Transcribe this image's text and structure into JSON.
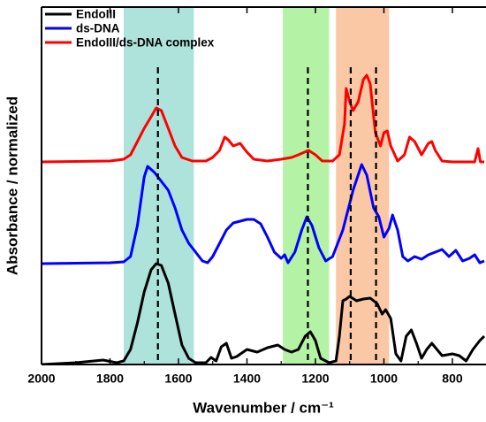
{
  "chart_data": {
    "type": "line",
    "x_label": "Wavenumber / cm⁻¹",
    "y_label": "Absorbance / normalized",
    "xlim": [
      2000,
      707
    ],
    "ylim": [
      0,
      404
    ],
    "xticks": [
      2000,
      1800,
      1600,
      1400,
      1200,
      1000,
      800
    ],
    "legend": "upper left",
    "bands": [
      {
        "from": 1760,
        "to": 1555,
        "color": "#aee3dc"
      },
      {
        "from": 1295,
        "to": 1160,
        "color": "#b4f3a6"
      },
      {
        "from": 1140,
        "to": 985,
        "color": "#fbc8a5"
      }
    ],
    "vlines": [
      1660,
      1222,
      1097,
      1023
    ],
    "series": [
      {
        "name": "EndoIII",
        "color": "#000000",
        "x": [
          2000,
          1900,
          1820,
          1780,
          1760,
          1740,
          1720,
          1700,
          1680,
          1665,
          1650,
          1630,
          1610,
          1590,
          1570,
          1550,
          1520,
          1505,
          1490,
          1475,
          1460,
          1445,
          1430,
          1400,
          1370,
          1340,
          1310,
          1290,
          1270,
          1250,
          1230,
          1215,
          1200,
          1185,
          1160,
          1140,
          1130,
          1120,
          1110,
          1100,
          1080,
          1060,
          1040,
          1020,
          1005,
          995,
          980,
          965,
          950,
          935,
          920,
          905,
          890,
          875,
          860,
          845,
          830,
          800,
          780,
          760,
          740,
          720,
          707
        ],
        "values": [
          0,
          2,
          5,
          2,
          4,
          17,
          47,
          82,
          107,
          114,
          112,
          92,
          57,
          22,
          7,
          2,
          2,
          8,
          4,
          20,
          24,
          7,
          9,
          17,
          14,
          19,
          22,
          17,
          14,
          17,
          32,
          37,
          27,
          7,
          2,
          4,
          32,
          72,
          74,
          77,
          72,
          74,
          75,
          69,
          57,
          62,
          52,
          12,
          4,
          32,
          39,
          24,
          7,
          17,
          24,
          17,
          10,
          12,
          10,
          4,
          17,
          27,
          32
        ]
      },
      {
        "name": "ds-DNA",
        "color": "#0000ff",
        "x": [
          2000,
          1800,
          1760,
          1740,
          1720,
          1700,
          1690,
          1670,
          1650,
          1630,
          1610,
          1590,
          1570,
          1550,
          1530,
          1515,
          1500,
          1480,
          1460,
          1440,
          1400,
          1380,
          1360,
          1340,
          1320,
          1300,
          1290,
          1280,
          1260,
          1240,
          1225,
          1210,
          1190,
          1170,
          1150,
          1120,
          1090,
          1065,
          1050,
          1030,
          1015,
          1000,
          985,
          975,
          960,
          945,
          930,
          910,
          890,
          870,
          850,
          830,
          810,
          790,
          770,
          750,
          735,
          720,
          707
        ],
        "values": [
          114,
          115,
          116,
          122,
          157,
          212,
          224,
          217,
          207,
          197,
          177,
          152,
          137,
          127,
          117,
          115,
          122,
          137,
          152,
          160,
          164,
          164,
          159,
          144,
          127,
          120,
          124,
          115,
          127,
          152,
          167,
          157,
          132,
          117,
          122,
          152,
          197,
          226,
          214,
          177,
          167,
          144,
          154,
          169,
          152,
          122,
          117,
          122,
          119,
          124,
          127,
          130,
          122,
          129,
          117,
          120,
          124,
          115,
          117
        ]
      },
      {
        "name": "EndoIII/ds-DNA complex",
        "color": "#ff0000",
        "x": [
          2000,
          1800,
          1760,
          1740,
          1720,
          1700,
          1680,
          1665,
          1650,
          1630,
          1610,
          1590,
          1560,
          1520,
          1500,
          1480,
          1465,
          1455,
          1440,
          1420,
          1400,
          1380,
          1340,
          1300,
          1270,
          1250,
          1220,
          1200,
          1180,
          1150,
          1130,
          1115,
          1110,
          1100,
          1090,
          1075,
          1060,
          1050,
          1040,
          1025,
          1010,
          1000,
          990,
          980,
          960,
          940,
          925,
          910,
          890,
          870,
          860,
          850,
          830,
          800,
          760,
          735,
          725,
          718,
          707
        ],
        "values": [
          229,
          230,
          232,
          237,
          252,
          267,
          280,
          290,
          287,
          267,
          247,
          234,
          230,
          230,
          234,
          242,
          257,
          254,
          247,
          250,
          240,
          232,
          230,
          232,
          234,
          237,
          242,
          237,
          230,
          230,
          237,
          272,
          312,
          297,
          287,
          297,
          322,
          327,
          317,
          262,
          247,
          262,
          264,
          247,
          230,
          237,
          257,
          252,
          237,
          250,
          252,
          242,
          230,
          229,
          229,
          229,
          244,
          229,
          229
        ]
      }
    ]
  }
}
